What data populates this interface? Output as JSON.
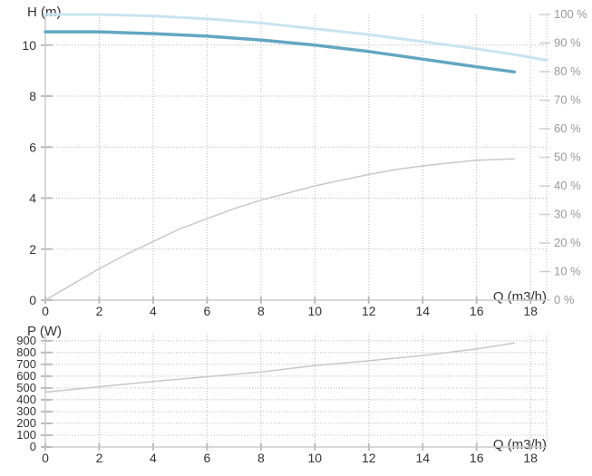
{
  "chart_data": [
    {
      "type": "line",
      "name": "head-efficiency",
      "xlabel": "Q (m3/h)",
      "ylabel": "H (m)",
      "x_ticks": [
        0,
        2,
        4,
        6,
        8,
        10,
        12,
        14,
        16,
        18
      ],
      "xlim": [
        0,
        18.6
      ],
      "y_ticks": [
        0,
        2,
        4,
        6,
        8,
        10
      ],
      "ylim": [
        0,
        11.2
      ],
      "y2_ticks": [
        "0 %",
        "10 %",
        "20 %",
        "30 %",
        "40 %",
        "50 %",
        "60 %",
        "70 %",
        "80 %",
        "90 %",
        "100 %"
      ],
      "y2lim": [
        0,
        100
      ],
      "grid": true,
      "series": [
        {
          "role": "head-curve",
          "color": "#63a6c2",
          "axis": "y",
          "x": [
            0,
            2,
            4,
            6,
            8,
            10,
            12,
            14,
            16,
            17.4
          ],
          "y": [
            10.52,
            10.52,
            10.45,
            10.35,
            10.2,
            10.0,
            9.75,
            9.45,
            9.15,
            8.95
          ]
        },
        {
          "role": "efficiency-curve",
          "color": "#c8c8c8",
          "axis": "y2",
          "x": [
            0,
            1,
            2,
            3,
            4,
            5,
            6,
            7,
            8,
            9,
            10,
            11,
            12,
            13,
            14,
            15,
            16,
            17.4
          ],
          "y": [
            0,
            5.5,
            11,
            16,
            20.5,
            25,
            28.5,
            32,
            35,
            37.5,
            40,
            42,
            44,
            45.7,
            47,
            48,
            49,
            49.5
          ]
        },
        {
          "role": "npsh-curve",
          "color": "#c9e4ef",
          "axis": "y2",
          "x": [
            0,
            2,
            4,
            6,
            8,
            10,
            12,
            14,
            16,
            17.4,
            18.6
          ],
          "y": [
            100,
            100,
            99.5,
            98.5,
            97,
            95,
            93,
            90.5,
            88,
            86,
            84
          ]
        }
      ]
    },
    {
      "type": "line",
      "name": "power",
      "xlabel": "Q (m3/h)",
      "ylabel": "P (W)",
      "x_ticks": [
        0,
        2,
        4,
        6,
        8,
        10,
        12,
        14,
        16,
        18
      ],
      "xlim": [
        0,
        18.6
      ],
      "y_ticks": [
        0,
        100,
        200,
        300,
        400,
        500,
        600,
        700,
        800,
        900
      ],
      "ylim": [
        0,
        960
      ],
      "grid": true,
      "series": [
        {
          "role": "power-curve",
          "color": "#c8c8c8",
          "x": [
            0,
            2,
            4,
            6,
            8,
            10,
            12,
            14,
            16,
            17.4
          ],
          "y": [
            465,
            510,
            555,
            595,
            635,
            690,
            730,
            775,
            830,
            880
          ]
        }
      ]
    }
  ]
}
